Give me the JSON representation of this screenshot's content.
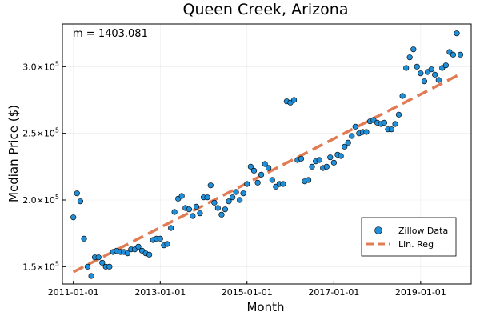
{
  "chart_data": {
    "type": "scatter",
    "title": "Queen Creek, Arizona",
    "xlabel": "Month",
    "ylabel": "Median Price ($)",
    "annotation": "m = 1403.081",
    "x_ticks": [
      "2011-01-01",
      "2013-01-01",
      "2015-01-01",
      "2017-01-01",
      "2019-01-01"
    ],
    "y_ticks": [
      {
        "value": 150000,
        "mantissa": "1.5",
        "exp": "5"
      },
      {
        "value": 200000,
        "mantissa": "2.0",
        "exp": "5"
      },
      {
        "value": 250000,
        "mantissa": "2.5",
        "exp": "5"
      },
      {
        "value": 300000,
        "mantissa": "3.0",
        "exp": "5"
      }
    ],
    "xlim": [
      "2010-10-01",
      "2020-03-01"
    ],
    "ylim": [
      137000,
      332000
    ],
    "grid": true,
    "legend_position": "bottom-right",
    "colors": {
      "points": "#1f8fd9",
      "line": "#e07b54"
    },
    "series": [
      {
        "name": "Zillow Data",
        "kind": "scatter",
        "points": [
          [
            "2011-01-01",
            187000
          ],
          [
            "2011-02-01",
            205000
          ],
          [
            "2011-03-01",
            199000
          ],
          [
            "2011-04-01",
            171000
          ],
          [
            "2011-05-01",
            150000
          ],
          [
            "2011-06-01",
            143000
          ],
          [
            "2011-07-01",
            157000
          ],
          [
            "2011-08-01",
            157000
          ],
          [
            "2011-09-01",
            153000
          ],
          [
            "2011-10-01",
            150000
          ],
          [
            "2011-11-01",
            150000
          ],
          [
            "2011-12-01",
            161000
          ],
          [
            "2012-01-01",
            162000
          ],
          [
            "2012-02-01",
            161000
          ],
          [
            "2012-03-01",
            161000
          ],
          [
            "2012-04-01",
            160000
          ],
          [
            "2012-05-01",
            163000
          ],
          [
            "2012-06-01",
            163000
          ],
          [
            "2012-07-01",
            165000
          ],
          [
            "2012-08-01",
            162000
          ],
          [
            "2012-09-01",
            160000
          ],
          [
            "2012-10-01",
            159000
          ],
          [
            "2012-11-01",
            170000
          ],
          [
            "2012-12-01",
            171000
          ],
          [
            "2013-01-01",
            171000
          ],
          [
            "2013-02-01",
            166000
          ],
          [
            "2013-03-01",
            167000
          ],
          [
            "2013-04-01",
            179000
          ],
          [
            "2013-05-01",
            191000
          ],
          [
            "2013-06-01",
            201000
          ],
          [
            "2013-07-01",
            203000
          ],
          [
            "2013-08-01",
            194000
          ],
          [
            "2013-09-01",
            193000
          ],
          [
            "2013-10-01",
            188000
          ],
          [
            "2013-11-01",
            195000
          ],
          [
            "2013-12-01",
            190000
          ],
          [
            "2014-01-01",
            202000
          ],
          [
            "2014-02-01",
            202000
          ],
          [
            "2014-03-01",
            211000
          ],
          [
            "2014-04-01",
            198000
          ],
          [
            "2014-05-01",
            194000
          ],
          [
            "2014-06-01",
            189000
          ],
          [
            "2014-07-01",
            193000
          ],
          [
            "2014-08-01",
            199000
          ],
          [
            "2014-09-01",
            202000
          ],
          [
            "2014-10-01",
            206000
          ],
          [
            "2014-11-01",
            200000
          ],
          [
            "2014-12-01",
            205000
          ],
          [
            "2015-01-01",
            212000
          ],
          [
            "2015-02-01",
            225000
          ],
          [
            "2015-03-01",
            222000
          ],
          [
            "2015-04-01",
            213000
          ],
          [
            "2015-05-01",
            219000
          ],
          [
            "2015-06-01",
            227000
          ],
          [
            "2015-07-01",
            224000
          ],
          [
            "2015-08-01",
            215000
          ],
          [
            "2015-09-01",
            210000
          ],
          [
            "2015-10-01",
            212000
          ],
          [
            "2015-11-01",
            212000
          ],
          [
            "2015-12-01",
            274000
          ],
          [
            "2016-01-01",
            273000
          ],
          [
            "2016-02-01",
            275000
          ],
          [
            "2016-03-01",
            230000
          ],
          [
            "2016-04-01",
            231000
          ],
          [
            "2016-05-01",
            214000
          ],
          [
            "2016-06-01",
            215000
          ],
          [
            "2016-07-01",
            225000
          ],
          [
            "2016-08-01",
            229000
          ],
          [
            "2016-09-01",
            230000
          ],
          [
            "2016-10-01",
            224000
          ],
          [
            "2016-11-01",
            225000
          ],
          [
            "2016-12-01",
            232000
          ],
          [
            "2017-01-01",
            228000
          ],
          [
            "2017-02-01",
            234000
          ],
          [
            "2017-03-01",
            233000
          ],
          [
            "2017-04-01",
            240000
          ],
          [
            "2017-05-01",
            243000
          ],
          [
            "2017-06-01",
            248000
          ],
          [
            "2017-07-01",
            255000
          ],
          [
            "2017-08-01",
            250000
          ],
          [
            "2017-09-01",
            251000
          ],
          [
            "2017-10-01",
            251000
          ],
          [
            "2017-11-01",
            259000
          ],
          [
            "2017-12-01",
            260000
          ],
          [
            "2018-01-01",
            258000
          ],
          [
            "2018-02-01",
            257000
          ],
          [
            "2018-03-01",
            258000
          ],
          [
            "2018-04-01",
            253000
          ],
          [
            "2018-05-01",
            253000
          ],
          [
            "2018-06-01",
            257000
          ],
          [
            "2018-07-01",
            264000
          ],
          [
            "2018-08-01",
            278000
          ],
          [
            "2018-09-01",
            299000
          ],
          [
            "2018-10-01",
            307000
          ],
          [
            "2018-11-01",
            313000
          ],
          [
            "2018-12-01",
            300000
          ],
          [
            "2019-01-01",
            295000
          ],
          [
            "2019-02-01",
            289000
          ],
          [
            "2019-03-01",
            296000
          ],
          [
            "2019-04-01",
            298000
          ],
          [
            "2019-05-01",
            294000
          ],
          [
            "2019-06-01",
            290000
          ],
          [
            "2019-07-01",
            299000
          ],
          [
            "2019-08-01",
            301000
          ],
          [
            "2019-09-01",
            311000
          ],
          [
            "2019-10-01",
            309000
          ],
          [
            "2019-11-01",
            325000
          ],
          [
            "2019-12-01",
            309000
          ]
        ]
      },
      {
        "name": "Lin. Reg",
        "kind": "line",
        "style": "dashed",
        "points": [
          [
            "2011-01-01",
            146000
          ],
          [
            "2019-12-01",
            294500
          ]
        ]
      }
    ]
  }
}
